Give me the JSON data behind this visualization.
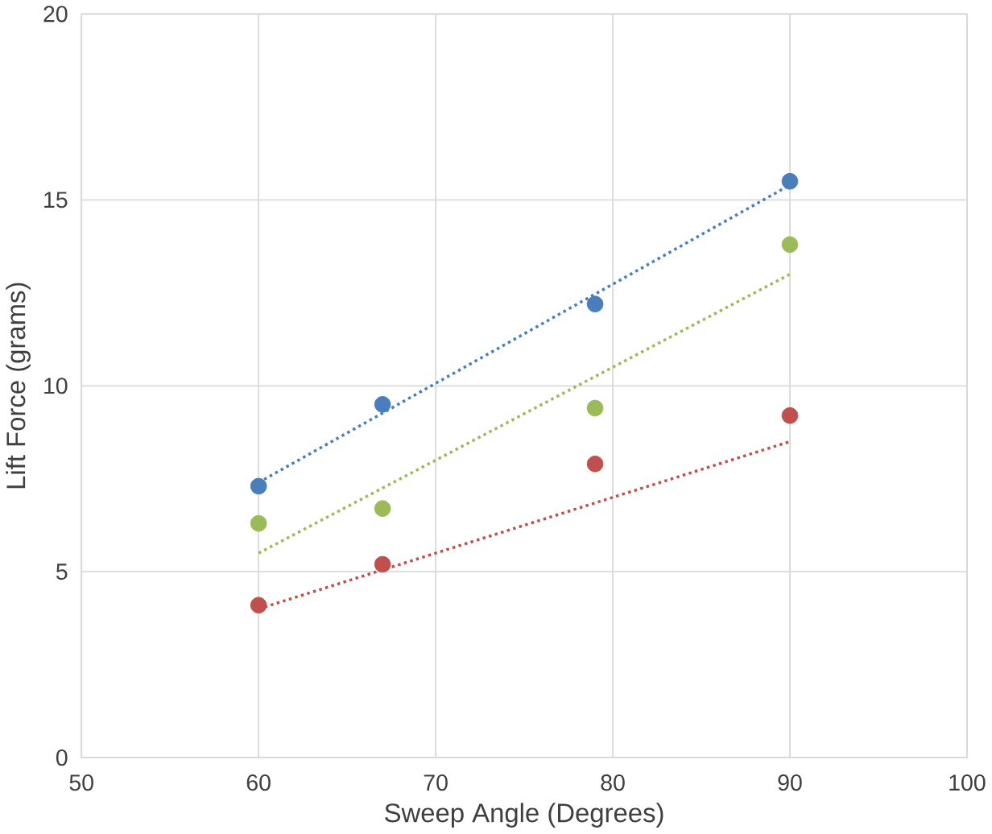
{
  "chart_data": {
    "type": "scatter",
    "xlabel": "Sweep Angle (Degrees)",
    "ylabel": "Lift Force (grams)",
    "xlim": [
      50,
      100
    ],
    "xticks": [
      50,
      60,
      70,
      80,
      90,
      100
    ],
    "ylim": [
      0,
      20
    ],
    "yticks": [
      0,
      5,
      10,
      15,
      20
    ],
    "grid": true,
    "marker": "circle",
    "series": [
      {
        "color": "#4a7ebb",
        "x": [
          60,
          67,
          79,
          90
        ],
        "values": [
          7.3,
          9.5,
          12.2,
          15.5
        ]
      },
      {
        "color": "#9bbb59",
        "x": [
          60,
          67,
          79,
          90
        ],
        "values": [
          6.3,
          6.7,
          9.4,
          13.8
        ]
      },
      {
        "color": "#c0504d",
        "x": [
          60,
          67,
          79,
          90
        ],
        "values": [
          4.1,
          5.2,
          7.9,
          9.2
        ]
      },
      {
        "type": "line",
        "line_style": "dotted",
        "marker": "none",
        "color": "#4a7ebb",
        "x": [
          60,
          90
        ],
        "values": [
          7.4,
          15.4
        ]
      },
      {
        "type": "line",
        "line_style": "dotted",
        "marker": "none",
        "color": "#9bbb59",
        "x": [
          60,
          90
        ],
        "values": [
          5.5,
          13.0
        ]
      },
      {
        "type": "line",
        "line_style": "dotted",
        "marker": "none",
        "color": "#c0504d",
        "x": [
          60,
          90
        ],
        "values": [
          4.0,
          8.5
        ]
      }
    ]
  }
}
